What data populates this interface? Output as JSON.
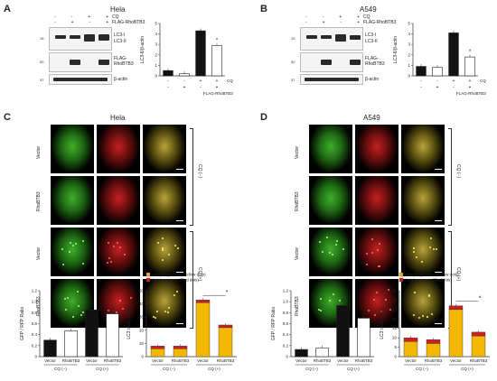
{
  "panels": {
    "A": {
      "letter": "A",
      "title": "Hela",
      "cq_label": "CQ",
      "flag_label": "FLAG-RhoBTB3",
      "cq_signs": [
        "-",
        "-",
        "+",
        "+"
      ],
      "flag_signs": [
        "-",
        "+",
        "-",
        "+"
      ],
      "blot_labels": [
        "LC3-I",
        "LC3-II",
        "FLAG-\nRhoBTB3",
        "β-actin"
      ],
      "mw": [
        "15",
        "50",
        "37"
      ]
    },
    "B": {
      "letter": "B",
      "title": "A549",
      "cq_label": "CQ",
      "flag_label": "FLAG-RhoBTB3",
      "cq_signs": [
        "-",
        "-",
        "+",
        "+"
      ],
      "flag_signs": [
        "-",
        "+",
        "-",
        "+"
      ],
      "blot_labels": [
        "LC3-I",
        "LC3-II",
        "FLAG-\nRhoBTB3",
        "β-actin"
      ],
      "mw": [
        "15",
        "50",
        "37"
      ]
    },
    "C": {
      "letter": "C",
      "title": "Hela",
      "rows": [
        "Vector",
        "RhoBTB3",
        "Vector",
        "RhoBTB3"
      ],
      "cq_groups": [
        "CQ (−)",
        "CQ (+)"
      ]
    },
    "D": {
      "letter": "D",
      "title": "A549",
      "rows": [
        "Vector",
        "RhoBTB3",
        "Vector",
        "RhoBTB3"
      ],
      "cq_groups": [
        "CQ (−)",
        "CQ (+)"
      ]
    }
  },
  "colors": {
    "orange": "#f5b800",
    "red": "#cc1f1f",
    "black": "#111111",
    "white": "#ffffff"
  },
  "chart_data": [
    {
      "id": "A-bar",
      "type": "bar",
      "ylabel": "LC3-II/β-actin",
      "ylim": [
        0,
        5
      ],
      "yticks": [
        "0",
        "1",
        "2",
        "3",
        "4",
        "5"
      ],
      "values": [
        0.5,
        0.2,
        4.3,
        2.9
      ],
      "colors": [
        "#111",
        "#fff",
        "#111",
        "#fff"
      ],
      "cq_signs": [
        "-",
        "-",
        "+",
        "+"
      ],
      "flag_signs": [
        "-",
        "+",
        "-",
        "+"
      ],
      "row_labels": [
        "CQ",
        "FLAG-RhoBTB3"
      ],
      "star": "*"
    },
    {
      "id": "B-bar",
      "type": "bar",
      "ylabel": "LC3-II/β-actin",
      "ylim": [
        0,
        5
      ],
      "yticks": [
        "0",
        "1",
        "2",
        "3",
        "4",
        "5"
      ],
      "values": [
        0.9,
        0.8,
        4.1,
        1.8
      ],
      "colors": [
        "#111",
        "#fff",
        "#111",
        "#fff"
      ],
      "cq_signs": [
        "-",
        "-",
        "+",
        "+"
      ],
      "flag_signs": [
        "-",
        "+",
        "-",
        "+"
      ],
      "row_labels": [
        "CQ",
        "FLAG-RhoBTB3"
      ],
      "star": "*"
    },
    {
      "id": "C-ratio",
      "type": "bar",
      "ylabel": "GFP / RFP Ratio",
      "ylim": [
        0,
        1.2
      ],
      "yticks": [
        "0",
        "0.2",
        "0.4",
        "0.6",
        "0.8",
        "1.0",
        "1.2"
      ],
      "categories": [
        "Vector",
        "RhoBTB3",
        "Vector",
        "RhoBTB3"
      ],
      "values": [
        0.3,
        0.47,
        0.85,
        0.78
      ],
      "colors": [
        "#111",
        "#fff",
        "#111",
        "#fff"
      ],
      "groups": [
        "CQ (−)",
        "CQ (+)"
      ],
      "marks": [
        "",
        "",
        "#",
        "#"
      ]
    },
    {
      "id": "C-dots",
      "type": "bar",
      "ylabel": "LC3 dots / cells",
      "ylim": [
        0,
        50
      ],
      "yticks": [
        "0",
        "10",
        "20",
        "30",
        "40",
        "50"
      ],
      "categories": [
        "Vector",
        "RhoBTB3",
        "Vector",
        "RhoBTB3"
      ],
      "series": [
        {
          "name": "Autophagosome (Yellow dots)",
          "values": [
            6,
            6,
            41,
            22
          ]
        },
        {
          "name": "AutoLysosome (Red dots)",
          "values": [
            2,
            2,
            2,
            2
          ]
        }
      ],
      "groups": [
        "CQ (−)",
        "CQ (+)"
      ],
      "star": "*"
    },
    {
      "id": "D-ratio",
      "type": "bar",
      "ylabel": "GFP / RFP Ratio",
      "ylim": [
        0,
        1.2
      ],
      "yticks": [
        "0",
        "0.2",
        "0.4",
        "0.6",
        "0.8",
        "1.0",
        "1.2"
      ],
      "categories": [
        "Vector",
        "RhoBTB3",
        "Vector",
        "RhoBTB3"
      ],
      "values": [
        0.13,
        0.16,
        0.93,
        0.7
      ],
      "colors": [
        "#111",
        "#fff",
        "#111",
        "#fff"
      ],
      "groups": [
        "CQ (−)",
        "CQ (+)"
      ],
      "marks": [
        "",
        "",
        "#",
        "#"
      ]
    },
    {
      "id": "D-dots",
      "type": "bar",
      "ylabel": "LC3 dots / cells",
      "ylim": [
        0,
        35
      ],
      "yticks": [
        "0",
        "5",
        "10",
        "15",
        "20",
        "25",
        "30",
        "35"
      ],
      "categories": [
        "Vector",
        "RhoBTB3",
        "Vector",
        "RhoBTB3"
      ],
      "series": [
        {
          "name": "Autophagosome (Yellow dots)",
          "values": [
            8,
            7,
            25,
            11
          ]
        },
        {
          "name": "AutoLysosome (Red dots)",
          "values": [
            2,
            2,
            2,
            2
          ]
        }
      ],
      "groups": [
        "CQ (−)",
        "CQ (+)"
      ],
      "star": "*"
    }
  ]
}
